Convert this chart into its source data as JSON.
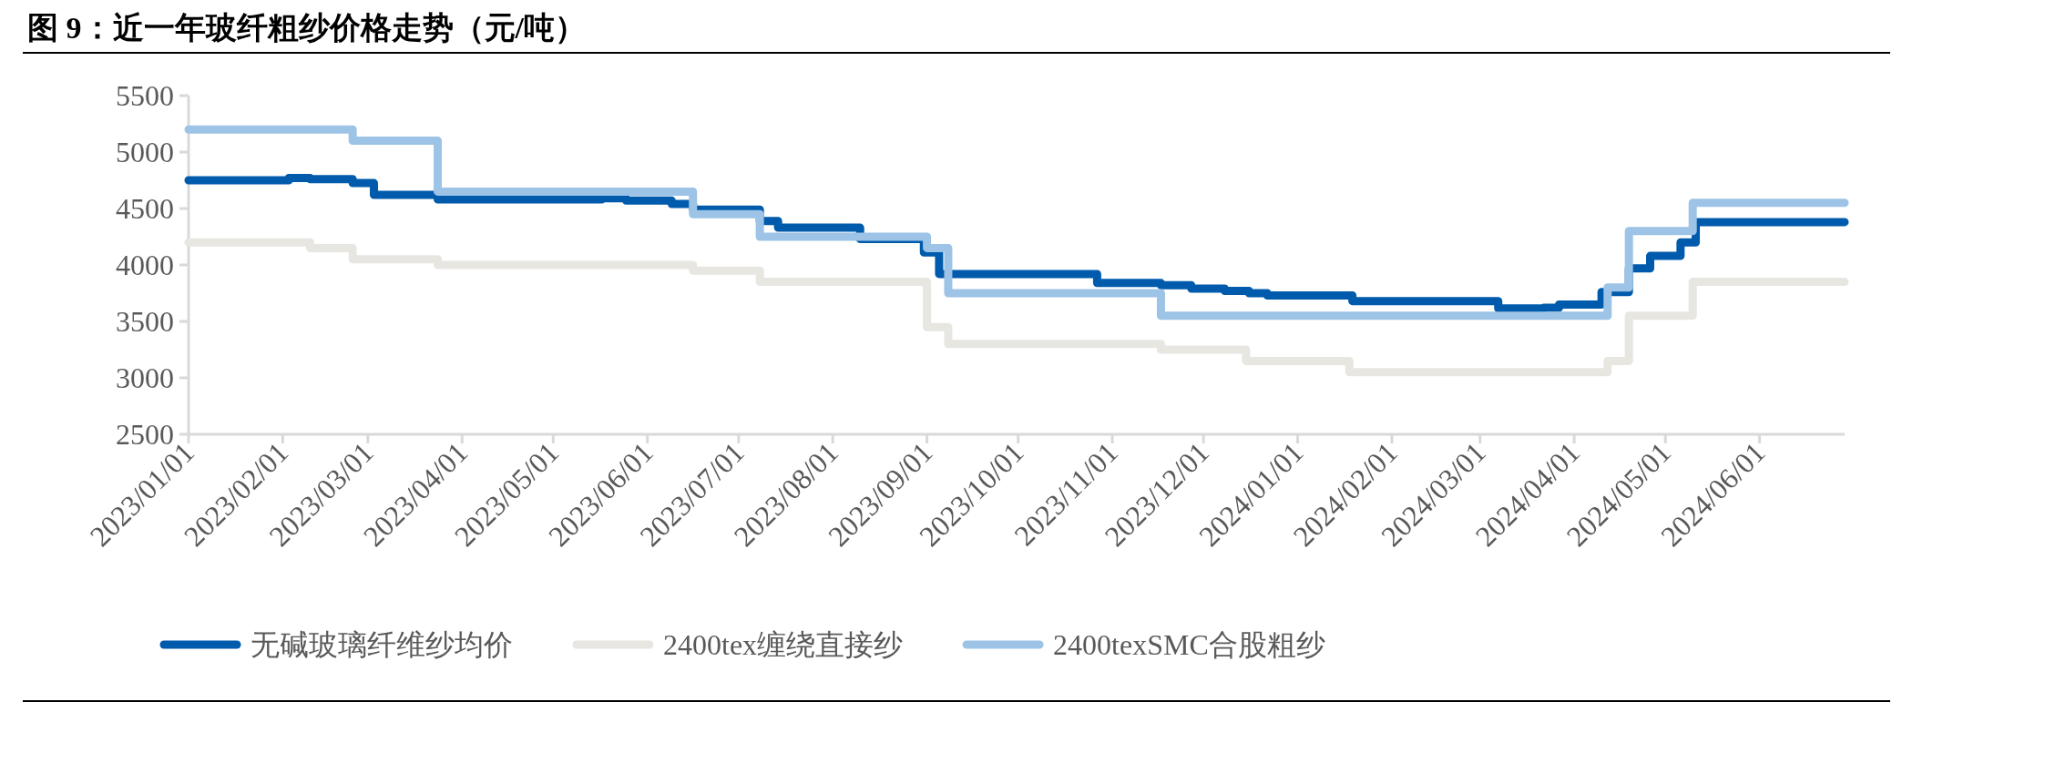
{
  "chart_data": {
    "type": "step",
    "title": "图 9：近一年玻纤粗纱价格走势（元/吨）",
    "xlim": [
      "2023-01-01",
      "2024-06-29"
    ],
    "xticks": [
      {
        "value": "2023-01-01",
        "label": "2023/01/01"
      },
      {
        "value": "2023-02-01",
        "label": "2023/02/01"
      },
      {
        "value": "2023-03-01",
        "label": "2023/03/01"
      },
      {
        "value": "2023-04-01",
        "label": "2023/04/01"
      },
      {
        "value": "2023-05-01",
        "label": "2023/05/01"
      },
      {
        "value": "2023-06-01",
        "label": "2023/06/01"
      },
      {
        "value": "2023-07-01",
        "label": "2023/07/01"
      },
      {
        "value": "2023-08-01",
        "label": "2023/08/01"
      },
      {
        "value": "2023-09-01",
        "label": "2023/09/01"
      },
      {
        "value": "2023-10-01",
        "label": "2023/10/01"
      },
      {
        "value": "2023-11-01",
        "label": "2023/11/01"
      },
      {
        "value": "2023-12-01",
        "label": "2023/12/01"
      },
      {
        "value": "2024-01-01",
        "label": "2024/01/01"
      },
      {
        "value": "2024-02-01",
        "label": "2024/02/01"
      },
      {
        "value": "2024-03-01",
        "label": "2024/03/01"
      },
      {
        "value": "2024-04-01",
        "label": "2024/04/01"
      },
      {
        "value": "2024-05-01",
        "label": "2024/05/01"
      },
      {
        "value": "2024-06-01",
        "label": "2024/06/01"
      }
    ],
    "ylim": [
      2500,
      5500
    ],
    "yticks": [
      2500,
      3000,
      3500,
      4000,
      4500,
      5000,
      5500
    ],
    "legend": "bottom",
    "series": [
      {
        "name": "无碱玻璃纤维纱均价",
        "color": "#005bac",
        "x": [
          "2023-01-01",
          "2023-02-03",
          "2023-02-10",
          "2023-02-24",
          "2023-03-03",
          "2023-03-24",
          "2023-05-17",
          "2023-05-25",
          "2023-06-09",
          "2023-06-16",
          "2023-07-08",
          "2023-07-14",
          "2023-08-10",
          "2023-08-31",
          "2023-09-05",
          "2023-10-27",
          "2023-11-17",
          "2023-11-27",
          "2023-12-08",
          "2023-12-16",
          "2023-12-22",
          "2024-01-19",
          "2024-03-07",
          "2024-03-22",
          "2024-03-27",
          "2024-04-10",
          "2024-04-19",
          "2024-04-26",
          "2024-05-06",
          "2024-05-11",
          "2024-06-29"
        ],
        "values": [
          4750,
          4770,
          4760,
          4725,
          4620,
          4580,
          4590,
          4570,
          4540,
          4490,
          4390,
          4330,
          4230,
          4110,
          3920,
          3840,
          3820,
          3790,
          3770,
          3750,
          3730,
          3680,
          3615,
          3620,
          3650,
          3760,
          3970,
          4080,
          4200,
          4380,
          4380
        ]
      },
      {
        "name": "2400tex缠绕直接纱",
        "color": "#e7e6e1",
        "x": [
          "2023-01-01",
          "2023-02-10",
          "2023-02-24",
          "2023-03-24",
          "2023-06-16",
          "2023-07-08",
          "2023-09-01",
          "2023-09-08",
          "2023-11-17",
          "2023-12-15",
          "2024-01-18",
          "2024-04-12",
          "2024-04-19",
          "2024-05-10",
          "2024-06-29"
        ],
        "values": [
          4200,
          4150,
          4050,
          4000,
          3950,
          3850,
          3450,
          3300,
          3250,
          3150,
          3050,
          3150,
          3550,
          3850,
          3850
        ]
      },
      {
        "name": "2400texSMC合股粗纱",
        "color": "#9dc3e6",
        "x": [
          "2023-01-01",
          "2023-02-24",
          "2023-03-24",
          "2023-06-16",
          "2023-07-08",
          "2023-09-01",
          "2023-09-08",
          "2023-11-17",
          "2024-04-12",
          "2024-04-19",
          "2024-05-10",
          "2024-06-29"
        ],
        "values": [
          5200,
          5100,
          4650,
          4450,
          4250,
          4150,
          3750,
          3550,
          3800,
          4300,
          4550,
          4550
        ]
      }
    ]
  }
}
